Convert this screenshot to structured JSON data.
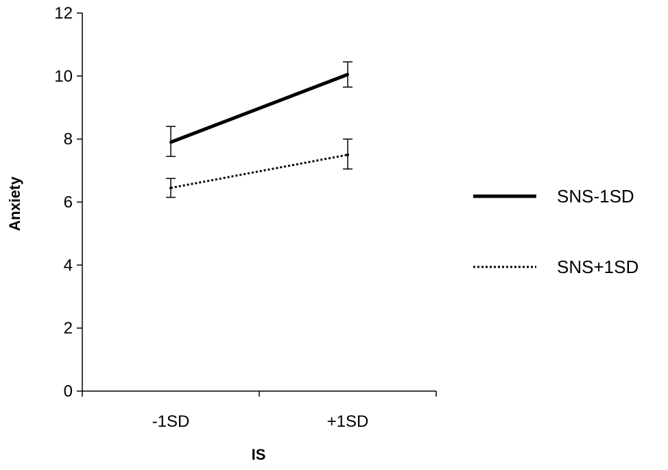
{
  "chart_data": {
    "type": "line",
    "title": "",
    "xlabel": "IS",
    "ylabel": "Anxiety",
    "categories": [
      "-1SD",
      "+1SD"
    ],
    "ylim": [
      0,
      12
    ],
    "yticks": [
      0,
      2,
      4,
      6,
      8,
      10,
      12
    ],
    "grid": false,
    "legend_position": "right",
    "series": [
      {
        "name": "SNS-1SD",
        "style": "solid",
        "color": "#000000",
        "values": [
          7.9,
          10.05
        ],
        "error_low": [
          7.45,
          9.65
        ],
        "error_high": [
          8.4,
          10.45
        ]
      },
      {
        "name": "SNS+1SD",
        "style": "dotted",
        "color": "#000000",
        "values": [
          6.45,
          7.5
        ],
        "error_low": [
          6.15,
          7.05
        ],
        "error_high": [
          6.75,
          8.0
        ]
      }
    ]
  }
}
